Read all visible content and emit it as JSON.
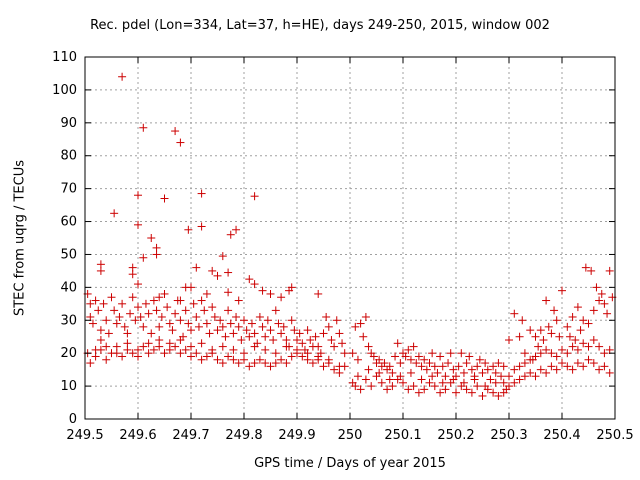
{
  "chart_data": {
    "type": "scatter",
    "title": "Rec. pdel (Lon=334, Lat=37, h=HE), days 249-250, 2015, window 002",
    "xlabel": "GPS time / Days of year 2015",
    "ylabel": "STEC from uqrg / TECUs",
    "xlim": [
      249.5,
      250.5
    ],
    "ylim": [
      0,
      110
    ],
    "xticks": [
      "249.5",
      "249.6",
      "249.7",
      "249.8",
      "249.9",
      "250",
      "250.1",
      "250.2",
      "250.3",
      "250.4",
      "250.5"
    ],
    "yticks": [
      "0",
      "10",
      "20",
      "30",
      "40",
      "50",
      "60",
      "70",
      "80",
      "90",
      "100",
      "110"
    ],
    "grid": true,
    "marker": "+",
    "color": "#cc0000",
    "points": [
      [
        249.57,
        104
      ],
      [
        249.61,
        88.5
      ],
      [
        249.67,
        87.5
      ],
      [
        249.68,
        84
      ],
      [
        249.6,
        68
      ],
      [
        249.72,
        68.5
      ],
      [
        249.82,
        67.7
      ],
      [
        249.65,
        67
      ],
      [
        249.555,
        62.5
      ],
      [
        249.6,
        59
      ],
      [
        249.695,
        57.5
      ],
      [
        249.72,
        58.5
      ],
      [
        249.775,
        56
      ],
      [
        249.785,
        57.5
      ],
      [
        249.625,
        55
      ],
      [
        249.635,
        52
      ],
      [
        249.635,
        50
      ],
      [
        249.61,
        49
      ],
      [
        249.76,
        49.5
      ],
      [
        249.53,
        47
      ],
      [
        249.59,
        46
      ],
      [
        249.59,
        44
      ],
      [
        249.71,
        46
      ],
      [
        249.74,
        45
      ],
      [
        249.75,
        43.5
      ],
      [
        249.77,
        44.5
      ],
      [
        249.81,
        42.5
      ],
      [
        249.82,
        41
      ],
      [
        249.53,
        45
      ],
      [
        249.6,
        41
      ],
      [
        249.64,
        37
      ],
      [
        249.68,
        36
      ],
      [
        249.69,
        40
      ],
      [
        249.7,
        40
      ],
      [
        249.73,
        38
      ],
      [
        249.77,
        38.5
      ],
      [
        249.79,
        36
      ],
      [
        249.835,
        39
      ],
      [
        249.85,
        38
      ],
      [
        249.87,
        37
      ],
      [
        249.885,
        39
      ],
      [
        249.89,
        40
      ],
      [
        249.94,
        38
      ],
      [
        249.505,
        38
      ],
      [
        249.51,
        35
      ],
      [
        249.51,
        31
      ],
      [
        249.515,
        29
      ],
      [
        249.52,
        36
      ],
      [
        249.525,
        33
      ],
      [
        249.53,
        27
      ],
      [
        249.53,
        24
      ],
      [
        249.535,
        35
      ],
      [
        249.54,
        30
      ],
      [
        249.545,
        26
      ],
      [
        249.55,
        37
      ],
      [
        249.555,
        33
      ],
      [
        249.56,
        29
      ],
      [
        249.565,
        31
      ],
      [
        249.57,
        35
      ],
      [
        249.575,
        28
      ],
      [
        249.58,
        26
      ],
      [
        249.585,
        32
      ],
      [
        249.59,
        37
      ],
      [
        249.595,
        30
      ],
      [
        249.6,
        34
      ],
      [
        249.605,
        31
      ],
      [
        249.61,
        28
      ],
      [
        249.615,
        35
      ],
      [
        249.62,
        32
      ],
      [
        249.625,
        26
      ],
      [
        249.63,
        36
      ],
      [
        249.635,
        33
      ],
      [
        249.64,
        28
      ],
      [
        249.645,
        31
      ],
      [
        249.65,
        38
      ],
      [
        249.655,
        34
      ],
      [
        249.66,
        29
      ],
      [
        249.665,
        27
      ],
      [
        249.67,
        32
      ],
      [
        249.675,
        36
      ],
      [
        249.68,
        30
      ],
      [
        249.685,
        25
      ],
      [
        249.69,
        33
      ],
      [
        249.695,
        29
      ],
      [
        249.7,
        27
      ],
      [
        249.705,
        35
      ],
      [
        249.71,
        31
      ],
      [
        249.715,
        28
      ],
      [
        249.72,
        36
      ],
      [
        249.725,
        33
      ],
      [
        249.73,
        29
      ],
      [
        249.735,
        26
      ],
      [
        249.74,
        34
      ],
      [
        249.745,
        31
      ],
      [
        249.75,
        27
      ],
      [
        249.755,
        30
      ],
      [
        249.76,
        28
      ],
      [
        249.765,
        25
      ],
      [
        249.77,
        33
      ],
      [
        249.775,
        29
      ],
      [
        249.78,
        26
      ],
      [
        249.785,
        31
      ],
      [
        249.79,
        28
      ],
      [
        249.795,
        24
      ],
      [
        249.8,
        30
      ],
      [
        249.805,
        27
      ],
      [
        249.81,
        25
      ],
      [
        249.815,
        29
      ],
      [
        249.82,
        26
      ],
      [
        249.825,
        23
      ],
      [
        249.83,
        31
      ],
      [
        249.835,
        28
      ],
      [
        249.84,
        25
      ],
      [
        249.845,
        30
      ],
      [
        249.85,
        27
      ],
      [
        249.855,
        24
      ],
      [
        249.86,
        33
      ],
      [
        249.865,
        29
      ],
      [
        249.87,
        26
      ],
      [
        249.875,
        28
      ],
      [
        249.88,
        24
      ],
      [
        249.885,
        22
      ],
      [
        249.89,
        30
      ],
      [
        249.895,
        27
      ],
      [
        249.9,
        24
      ],
      [
        249.905,
        26
      ],
      [
        249.91,
        23
      ],
      [
        249.915,
        21
      ],
      [
        249.92,
        27
      ],
      [
        249.925,
        24
      ],
      [
        249.93,
        22
      ],
      [
        249.935,
        25
      ],
      [
        249.94,
        22
      ],
      [
        249.945,
        20
      ],
      [
        249.95,
        26
      ],
      [
        249.955,
        31
      ],
      [
        249.96,
        28
      ],
      [
        249.965,
        24
      ],
      [
        249.97,
        22
      ],
      [
        249.975,
        30
      ],
      [
        249.98,
        26
      ],
      [
        249.985,
        23
      ],
      [
        249.99,
        20
      ],
      [
        249.505,
        20
      ],
      [
        249.51,
        17
      ],
      [
        249.52,
        19
      ],
      [
        249.53,
        21
      ],
      [
        249.54,
        18
      ],
      [
        249.55,
        20
      ],
      [
        249.56,
        22
      ],
      [
        249.57,
        19
      ],
      [
        249.58,
        21
      ],
      [
        249.59,
        20
      ],
      [
        249.6,
        19
      ],
      [
        249.61,
        22
      ],
      [
        249.62,
        20
      ],
      [
        249.63,
        21
      ],
      [
        249.64,
        22
      ],
      [
        249.65,
        20
      ],
      [
        249.66,
        21
      ],
      [
        249.67,
        22
      ],
      [
        249.68,
        20
      ],
      [
        249.69,
        21
      ],
      [
        249.7,
        19
      ],
      [
        249.71,
        20
      ],
      [
        249.72,
        18
      ],
      [
        249.73,
        19
      ],
      [
        249.74,
        20
      ],
      [
        249.75,
        18
      ],
      [
        249.76,
        17
      ],
      [
        249.77,
        19
      ],
      [
        249.78,
        18
      ],
      [
        249.79,
        17
      ],
      [
        249.8,
        18
      ],
      [
        249.81,
        16
      ],
      [
        249.82,
        17
      ],
      [
        249.83,
        18
      ],
      [
        249.84,
        17
      ],
      [
        249.85,
        16
      ],
      [
        249.86,
        17
      ],
      [
        249.87,
        18
      ],
      [
        249.88,
        17
      ],
      [
        249.89,
        19
      ],
      [
        249.9,
        20
      ],
      [
        249.91,
        19
      ],
      [
        249.92,
        18
      ],
      [
        249.93,
        17
      ],
      [
        249.94,
        18
      ],
      [
        249.95,
        16
      ],
      [
        249.96,
        17
      ],
      [
        249.97,
        15
      ],
      [
        249.98,
        14
      ],
      [
        249.99,
        16
      ],
      [
        249.52,
        21
      ],
      [
        249.54,
        22
      ],
      [
        249.56,
        20
      ],
      [
        249.58,
        23
      ],
      [
        249.6,
        21
      ],
      [
        249.62,
        23
      ],
      [
        249.64,
        24
      ],
      [
        249.66,
        23
      ],
      [
        249.68,
        24
      ],
      [
        249.7,
        22
      ],
      [
        249.72,
        23
      ],
      [
        249.74,
        21
      ],
      [
        249.76,
        22
      ],
      [
        249.78,
        21
      ],
      [
        249.8,
        20
      ],
      [
        249.82,
        22
      ],
      [
        249.84,
        21
      ],
      [
        249.86,
        20
      ],
      [
        249.88,
        22
      ],
      [
        249.9,
        21
      ],
      [
        249.92,
        20
      ],
      [
        249.94,
        19
      ],
      [
        249.96,
        18
      ],
      [
        249.98,
        16
      ],
      [
        250.005,
        20
      ],
      [
        250.01,
        28
      ],
      [
        250.015,
        18
      ],
      [
        250.02,
        29
      ],
      [
        250.025,
        25
      ],
      [
        250.03,
        31
      ],
      [
        250.035,
        22
      ],
      [
        250.04,
        20
      ],
      [
        250.045,
        19
      ],
      [
        250.05,
        17
      ],
      [
        250.055,
        18
      ],
      [
        250.06,
        16
      ],
      [
        250.065,
        17
      ],
      [
        250.07,
        15
      ],
      [
        250.075,
        16
      ],
      [
        250.08,
        14
      ],
      [
        250.085,
        19
      ],
      [
        250.09,
        23
      ],
      [
        250.095,
        17
      ],
      [
        250.1,
        20
      ],
      [
        250.105,
        19
      ],
      [
        250.11,
        21
      ],
      [
        250.115,
        18
      ],
      [
        250.12,
        22
      ],
      [
        250.125,
        17
      ],
      [
        250.13,
        19
      ],
      [
        250.135,
        16
      ],
      [
        250.14,
        18
      ],
      [
        250.145,
        15
      ],
      [
        250.15,
        17
      ],
      [
        250.155,
        20
      ],
      [
        250.16,
        16
      ],
      [
        250.165,
        14
      ],
      [
        250.17,
        19
      ],
      [
        250.175,
        16
      ],
      [
        250.18,
        13
      ],
      [
        250.185,
        17
      ],
      [
        250.19,
        20
      ],
      [
        250.195,
        15
      ],
      [
        250.2,
        13
      ],
      [
        250.205,
        16
      ],
      [
        250.21,
        20
      ],
      [
        250.215,
        14
      ],
      [
        250.22,
        17
      ],
      [
        250.225,
        19
      ],
      [
        250.23,
        15
      ],
      [
        250.235,
        13
      ],
      [
        250.24,
        16
      ],
      [
        250.245,
        18
      ],
      [
        250.25,
        14
      ],
      [
        250.255,
        17
      ],
      [
        250.26,
        15
      ],
      [
        250.265,
        12
      ],
      [
        250.27,
        16
      ],
      [
        250.275,
        14
      ],
      [
        250.28,
        17
      ],
      [
        250.285,
        13
      ],
      [
        250.29,
        16
      ],
      [
        250.005,
        11
      ],
      [
        250.01,
        10
      ],
      [
        250.02,
        9
      ],
      [
        250.03,
        12
      ],
      [
        250.04,
        10
      ],
      [
        250.05,
        13
      ],
      [
        250.06,
        11
      ],
      [
        250.07,
        9
      ],
      [
        250.08,
        10
      ],
      [
        250.09,
        12
      ],
      [
        250.1,
        11
      ],
      [
        250.11,
        9
      ],
      [
        250.12,
        10
      ],
      [
        250.13,
        8
      ],
      [
        250.14,
        9
      ],
      [
        250.15,
        11
      ],
      [
        250.16,
        10
      ],
      [
        250.17,
        8
      ],
      [
        250.18,
        9
      ],
      [
        250.19,
        11
      ],
      [
        250.2,
        8
      ],
      [
        250.21,
        10
      ],
      [
        250.22,
        9
      ],
      [
        250.23,
        8
      ],
      [
        250.24,
        10
      ],
      [
        250.25,
        7
      ],
      [
        250.26,
        9
      ],
      [
        250.27,
        8
      ],
      [
        250.28,
        7
      ],
      [
        250.29,
        8
      ],
      [
        250.295,
        9
      ],
      [
        250.015,
        13
      ],
      [
        250.035,
        15
      ],
      [
        250.055,
        14
      ],
      [
        250.075,
        12
      ],
      [
        250.095,
        13
      ],
      [
        250.115,
        14
      ],
      [
        250.135,
        12
      ],
      [
        250.155,
        13
      ],
      [
        250.175,
        11
      ],
      [
        250.195,
        12
      ],
      [
        250.215,
        11
      ],
      [
        250.235,
        12
      ],
      [
        250.255,
        10
      ],
      [
        250.275,
        11
      ],
      [
        250.29,
        11
      ],
      [
        250.3,
        24
      ],
      [
        250.31,
        32
      ],
      [
        250.32,
        25
      ],
      [
        250.325,
        30
      ],
      [
        250.33,
        20
      ],
      [
        250.34,
        27
      ],
      [
        250.345,
        18
      ],
      [
        250.35,
        25
      ],
      [
        250.355,
        22
      ],
      [
        250.36,
        27
      ],
      [
        250.365,
        24
      ],
      [
        250.37,
        36
      ],
      [
        250.375,
        28
      ],
      [
        250.38,
        26
      ],
      [
        250.385,
        33
      ],
      [
        250.39,
        30
      ],
      [
        250.395,
        25
      ],
      [
        250.4,
        39
      ],
      [
        250.41,
        28
      ],
      [
        250.415,
        25
      ],
      [
        250.42,
        31
      ],
      [
        250.425,
        24
      ],
      [
        250.43,
        34
      ],
      [
        250.435,
        27
      ],
      [
        250.44,
        30
      ],
      [
        250.445,
        46
      ],
      [
        250.45,
        29
      ],
      [
        250.455,
        45
      ],
      [
        250.46,
        33
      ],
      [
        250.465,
        40
      ],
      [
        250.47,
        36
      ],
      [
        250.475,
        38
      ],
      [
        250.48,
        35
      ],
      [
        250.485,
        32
      ],
      [
        250.49,
        45
      ],
      [
        250.495,
        37
      ],
      [
        250.3,
        10
      ],
      [
        250.31,
        11
      ],
      [
        250.32,
        12
      ],
      [
        250.33,
        13
      ],
      [
        250.34,
        14
      ],
      [
        250.35,
        13
      ],
      [
        250.36,
        15
      ],
      [
        250.37,
        14
      ],
      [
        250.38,
        16
      ],
      [
        250.39,
        15
      ],
      [
        250.4,
        17
      ],
      [
        250.41,
        16
      ],
      [
        250.42,
        15
      ],
      [
        250.43,
        17
      ],
      [
        250.44,
        16
      ],
      [
        250.45,
        18
      ],
      [
        250.46,
        17
      ],
      [
        250.47,
        15
      ],
      [
        250.48,
        16
      ],
      [
        250.49,
        14
      ],
      [
        250.3,
        13
      ],
      [
        250.31,
        15
      ],
      [
        250.32,
        16
      ],
      [
        250.33,
        17
      ],
      [
        250.34,
        18
      ],
      [
        250.35,
        19
      ],
      [
        250.36,
        20
      ],
      [
        250.37,
        21
      ],
      [
        250.38,
        20
      ],
      [
        250.39,
        19
      ],
      [
        250.4,
        21
      ],
      [
        250.41,
        20
      ],
      [
        250.42,
        22
      ],
      [
        250.43,
        21
      ],
      [
        250.44,
        23
      ],
      [
        250.45,
        22
      ],
      [
        250.46,
        24
      ],
      [
        250.47,
        22
      ],
      [
        250.48,
        20
      ],
      [
        250.49,
        21
      ]
    ]
  }
}
